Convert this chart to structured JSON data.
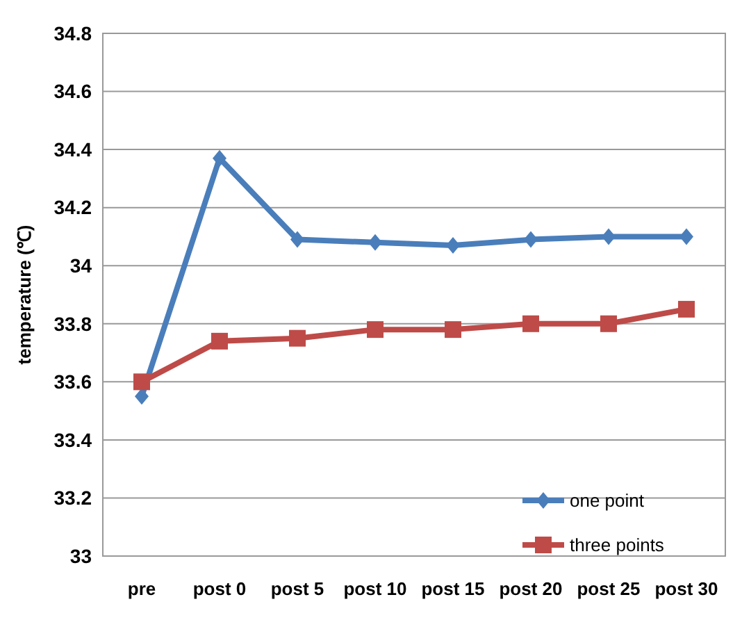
{
  "chart_data": {
    "type": "line",
    "ylabel": "temperature (℃)",
    "categories": [
      "pre",
      "post 0",
      "post 5",
      "post 10",
      "post 15",
      "post 20",
      "post 25",
      "post 30"
    ],
    "series": [
      {
        "name": "one point",
        "color": "#4a7ebb",
        "marker": "diamond",
        "values": [
          33.55,
          34.37,
          34.09,
          34.08,
          34.07,
          34.09,
          34.1,
          34.1
        ]
      },
      {
        "name": "three points",
        "color": "#be4b48",
        "marker": "square",
        "values": [
          33.6,
          33.74,
          33.75,
          33.78,
          33.78,
          33.8,
          33.8,
          33.85
        ]
      }
    ],
    "ylim": [
      33,
      34.8
    ],
    "yticks": [
      33,
      33.2,
      33.4,
      33.6,
      33.8,
      34,
      34.2,
      34.4,
      34.6,
      34.8
    ],
    "grid": "y",
    "legend": "bottom right"
  }
}
